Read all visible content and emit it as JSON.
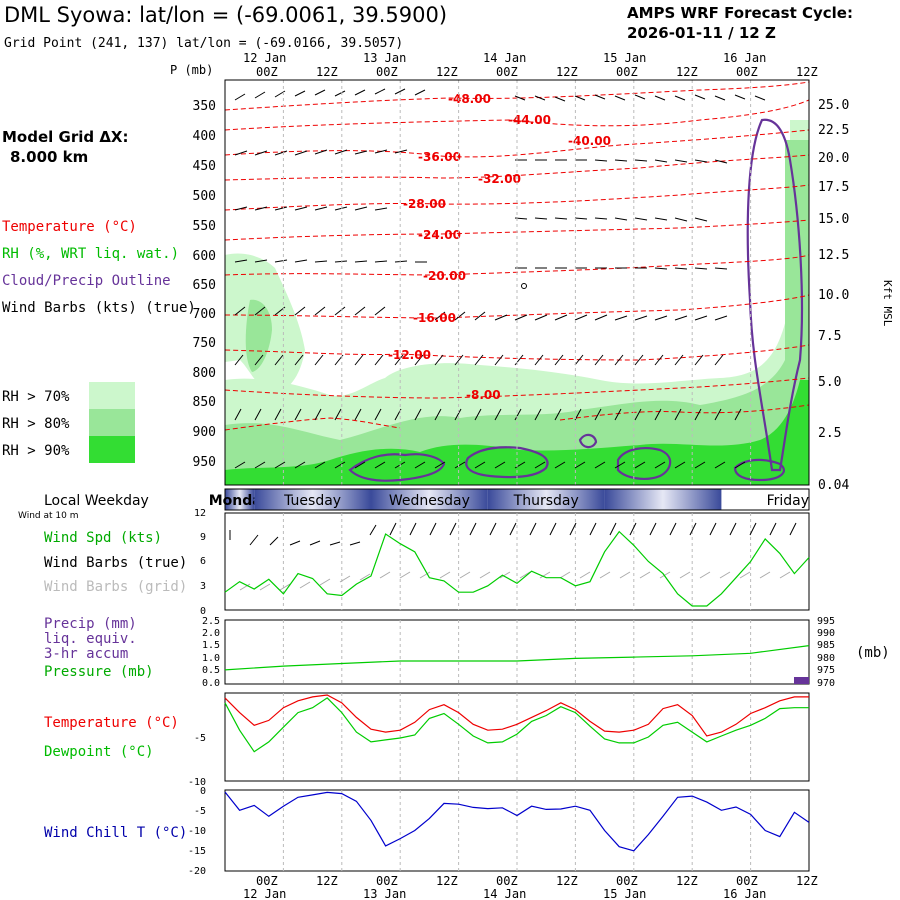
{
  "header": {
    "title": "DML Syowa:  lat/lon = (-69.0061, 39.5900)",
    "grid_point": "Grid Point (241, 137) lat/lon = (-69.0166, 39.5057)",
    "forecast_label": "AMPS WRF Forecast Cycle:",
    "forecast_cycle": "2026-01-11 / 12  Z",
    "model_grid_label": "Model Grid ΔX:",
    "model_grid_value": "8.000 km"
  },
  "legend": {
    "temperature": "Temperature (°C)",
    "rh": "RH (%, WRT liq. wat.)",
    "cloud": "Cloud/Precip Outline",
    "wind": "Wind Barbs (kts) (true)",
    "rh_bins": [
      "RH > 70%",
      "RH > 80%",
      "RH > 90%"
    ],
    "colors": {
      "rh70": "#ccf7cc",
      "rh80": "#99e699",
      "rh90": "#33dd33",
      "temperature": "#ee0000",
      "cloud": "#663399",
      "dewpoint": "#00cc00",
      "windchill": "#0000cc",
      "weekday_band": "#3a4a9a"
    }
  },
  "time_axis": {
    "ticks": [
      "00Z",
      "12Z",
      "00Z",
      "12Z",
      "00Z",
      "12Z",
      "00Z",
      "12Z",
      "00Z",
      "12Z"
    ],
    "dates": [
      "12 Jan",
      "13 Jan",
      "14 Jan",
      "15 Jan",
      "16 Jan"
    ]
  },
  "upper_panel": {
    "pressure_label": "P (mb)",
    "pressure_levels": [
      "350",
      "400",
      "450",
      "500",
      "550",
      "600",
      "650",
      "700",
      "750",
      "800",
      "850",
      "900",
      "950"
    ],
    "height_label": "Kft MSL",
    "height_levels": [
      "25.0",
      "22.5",
      "20.0",
      "17.5",
      "15.0",
      "12.5",
      "10.0",
      "7.5",
      "5.0",
      "2.5",
      "0.04"
    ],
    "temp_labels": [
      "-48.00",
      "-44.00",
      "-40.00",
      "-36.00",
      "-32.00",
      "-28.00",
      "-24.00",
      "-20.00",
      "-16.00",
      "-12.00",
      "-8.00"
    ]
  },
  "weekday_band": {
    "title": "Local Weekday",
    "subtitle": "Wind at 10 m",
    "days": [
      "Monday",
      "Tuesday",
      "Wednesday",
      "Thursday",
      "Friday"
    ]
  },
  "panels": {
    "wind": {
      "labels": [
        "Wind Spd (kts)",
        "Wind Barbs (true)",
        "Wind Barbs (grid)"
      ],
      "yticks": [
        "12",
        "9",
        "6",
        "3",
        "0"
      ]
    },
    "precip": {
      "labels": [
        "Precip (mm)",
        "liq. equiv.",
        "3-hr accum",
        "Pressure (mb)"
      ],
      "left_ticks": [
        "2.5",
        "2.0",
        "1.5",
        "1.0",
        "0.5",
        "0.0"
      ],
      "right_ticks": [
        "995",
        "990",
        "985",
        "980",
        "975",
        "970"
      ],
      "right_unit": "(mb)"
    },
    "temp": {
      "labels": [
        "Temperature (°C)",
        "Dewpoint (°C)"
      ],
      "yticks": [
        "-5",
        "-10"
      ]
    },
    "windchill": {
      "labels": [
        "Wind Chill T (°C)"
      ],
      "yticks": [
        "0",
        "-5",
        "-10",
        "-15",
        "-20"
      ]
    }
  },
  "chart_data": [
    {
      "type": "line",
      "panel": "wind",
      "ylim": [
        0,
        12
      ],
      "series": [
        {
          "name": "Wind Spd (kts)",
          "x_hours": [
            0,
            3,
            6,
            9,
            12,
            15,
            18,
            21,
            24,
            27,
            30,
            33,
            36,
            39,
            42,
            45,
            48,
            51,
            54,
            57,
            60,
            63,
            66,
            69,
            72,
            75,
            78,
            81,
            84,
            87,
            90,
            93,
            96,
            99,
            102,
            105,
            108,
            111,
            114,
            117,
            120
          ],
          "values": [
            2.2,
            3.5,
            2.6,
            3.8,
            2.0,
            4.5,
            3.9,
            2.0,
            1.8,
            3.2,
            4.2,
            9.4,
            8.2,
            7.2,
            4.0,
            3.6,
            2.2,
            2.2,
            3.0,
            4.3,
            3.3,
            4.8,
            4.0,
            4.0,
            3.0,
            3.5,
            7.2,
            9.7,
            8.0,
            6.0,
            4.5,
            2.0,
            0.5,
            0.5,
            2.0,
            4.0,
            6.0,
            8.8,
            7.0,
            4.5,
            6.5
          ]
        }
      ]
    },
    {
      "type": "line",
      "panel": "precip_pressure",
      "y2lim": [
        970,
        995
      ],
      "series": [
        {
          "name": "Pressure (mb)",
          "x_hours": [
            0,
            12,
            24,
            36,
            48,
            60,
            72,
            84,
            96,
            108,
            120
          ],
          "values": [
            975.5,
            977,
            978,
            979,
            979,
            979,
            980,
            980.5,
            981,
            982,
            985
          ]
        }
      ]
    },
    {
      "type": "line",
      "panel": "temperature",
      "ylim": [
        -10,
        -1
      ],
      "series": [
        {
          "name": "Temperature (°C)",
          "x_hours": [
            0,
            3,
            6,
            9,
            12,
            15,
            18,
            21,
            24,
            27,
            30,
            33,
            36,
            39,
            42,
            45,
            48,
            51,
            54,
            57,
            60,
            63,
            66,
            69,
            72,
            75,
            78,
            81,
            84,
            87,
            90,
            93,
            96,
            99,
            102,
            105,
            108,
            111,
            114,
            117,
            120
          ],
          "values": [
            -1.5,
            -3.0,
            -4.3,
            -3.8,
            -2.5,
            -1.8,
            -1.4,
            -1.2,
            -2.0,
            -3.5,
            -4.7,
            -5.0,
            -4.8,
            -4.0,
            -2.7,
            -2.2,
            -3.0,
            -4.2,
            -4.8,
            -4.7,
            -4.2,
            -3.5,
            -2.8,
            -2.0,
            -2.7,
            -3.9,
            -4.9,
            -5.0,
            -4.8,
            -4.2,
            -2.6,
            -2.2,
            -3.3,
            -5.4,
            -5.0,
            -4.2,
            -3.1,
            -2.5,
            -1.8,
            -1.4,
            -1.4
          ]
        },
        {
          "name": "Dewpoint (°C)",
          "x_hours": [
            0,
            3,
            6,
            9,
            12,
            15,
            18,
            21,
            24,
            27,
            30,
            33,
            36,
            39,
            42,
            45,
            48,
            51,
            54,
            57,
            60,
            63,
            66,
            69,
            72,
            75,
            78,
            81,
            84,
            87,
            90,
            93,
            96,
            99,
            102,
            105,
            108,
            111,
            114,
            117,
            120
          ],
          "values": [
            -2.0,
            -4.8,
            -7.0,
            -6.0,
            -4.5,
            -3.0,
            -2.5,
            -1.5,
            -3.0,
            -5.0,
            -6.0,
            -5.8,
            -5.6,
            -5.3,
            -3.6,
            -3.1,
            -4.2,
            -5.4,
            -6.1,
            -6.0,
            -5.2,
            -3.9,
            -3.3,
            -2.4,
            -3.0,
            -4.4,
            -5.7,
            -6.1,
            -6.1,
            -5.5,
            -4.3,
            -4.0,
            -5.0,
            -6.0,
            -5.4,
            -4.8,
            -4.3,
            -3.6,
            -2.6,
            -2.5,
            -2.5
          ]
        }
      ]
    },
    {
      "type": "line",
      "panel": "windchill",
      "ylim": [
        -20,
        0
      ],
      "series": [
        {
          "name": "Wind Chill T (°C)",
          "x_hours": [
            0,
            3,
            6,
            9,
            12,
            15,
            18,
            21,
            24,
            27,
            30,
            33,
            36,
            39,
            42,
            45,
            48,
            51,
            54,
            57,
            60,
            63,
            66,
            69,
            72,
            75,
            78,
            81,
            84,
            87,
            90,
            93,
            96,
            99,
            102,
            105,
            108,
            111,
            114,
            117,
            120
          ],
          "values": [
            -0.5,
            -5.0,
            -3.8,
            -6.5,
            -4.0,
            -1.8,
            -1.2,
            -0.6,
            -0.9,
            -2.8,
            -7.5,
            -13.8,
            -12.0,
            -10.0,
            -7.0,
            -3.3,
            -3.5,
            -4.3,
            -4.6,
            -4.4,
            -6.3,
            -4.0,
            -4.8,
            -4.7,
            -4.0,
            -5.0,
            -10.0,
            -14.0,
            -15.0,
            -11.0,
            -6.5,
            -1.8,
            -1.5,
            -3.0,
            -5.0,
            -4.2,
            -6.0,
            -10.0,
            -11.5,
            -5.5,
            -8.0
          ]
        }
      ]
    }
  ]
}
